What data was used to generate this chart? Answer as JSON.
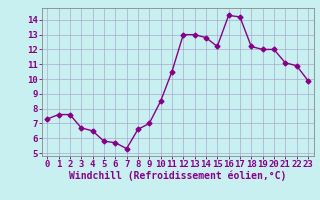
{
  "x": [
    0,
    1,
    2,
    3,
    4,
    5,
    6,
    7,
    8,
    9,
    10,
    11,
    12,
    13,
    14,
    15,
    16,
    17,
    18,
    19,
    20,
    21,
    22,
    23
  ],
  "y": [
    7.3,
    7.6,
    7.6,
    6.7,
    6.5,
    5.8,
    5.7,
    5.3,
    6.6,
    7.0,
    8.5,
    10.5,
    13.0,
    13.0,
    12.8,
    12.2,
    14.3,
    14.2,
    12.2,
    12.0,
    12.0,
    11.1,
    10.9,
    9.9
  ],
  "line_color": "#880088",
  "marker": "D",
  "marker_size": 2.5,
  "line_width": 1.0,
  "xlabel": "Windchill (Refroidissement éolien,°C)",
  "xlabel_fontsize": 7,
  "ylim": [
    4.8,
    14.8
  ],
  "xlim": [
    -0.5,
    23.5
  ],
  "yticks": [
    5,
    6,
    7,
    8,
    9,
    10,
    11,
    12,
    13,
    14
  ],
  "xticks": [
    0,
    1,
    2,
    3,
    4,
    5,
    6,
    7,
    8,
    9,
    10,
    11,
    12,
    13,
    14,
    15,
    16,
    17,
    18,
    19,
    20,
    21,
    22,
    23
  ],
  "xtick_labels": [
    "0",
    "1",
    "2",
    "3",
    "4",
    "5",
    "6",
    "7",
    "8",
    "9",
    "10",
    "11",
    "12",
    "13",
    "14",
    "15",
    "16",
    "17",
    "18",
    "19",
    "20",
    "21",
    "22",
    "23"
  ],
  "bg_color": "#c8f0f0",
  "grid_color": "#aaaacc",
  "tick_fontsize": 6.5,
  "spine_color": "#888888"
}
